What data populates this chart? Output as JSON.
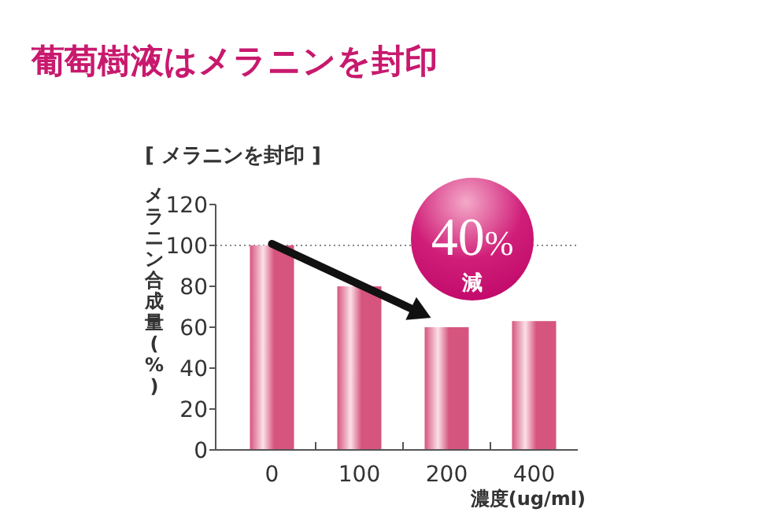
{
  "chart_data": {
    "type": "bar",
    "title": "葡萄樹液はメラニンを封印",
    "subtitle": "[ メラニンを封印 ]",
    "xlabel": "濃度(ug/ml)",
    "ylabel": "メラニン合成量(%)",
    "categories": [
      "0",
      "100",
      "200",
      "400"
    ],
    "values": [
      100,
      80,
      60,
      63
    ],
    "color": "#d6557e",
    "ylim": [
      0,
      120
    ],
    "yticks": [
      0,
      20,
      40,
      60,
      80,
      100,
      120
    ],
    "ref_lines": [
      {
        "axis": "y",
        "value": 100,
        "line_style": "dotted",
        "color": "#888888"
      }
    ],
    "annotations": [
      "40%",
      "減"
    ]
  }
}
